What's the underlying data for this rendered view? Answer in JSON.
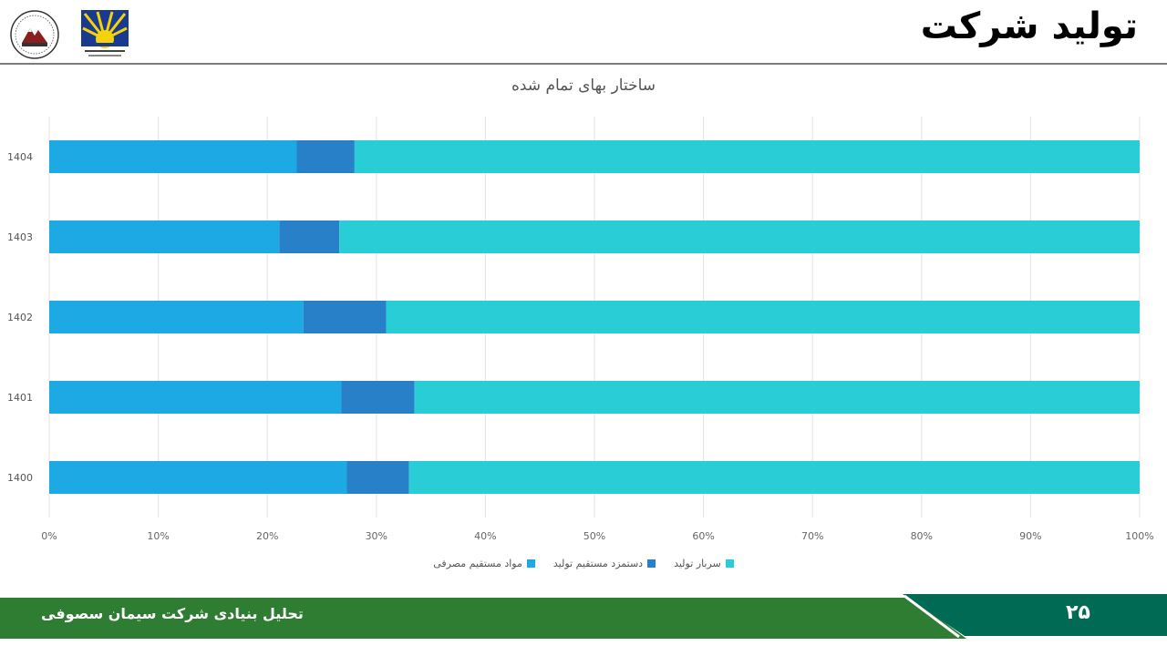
{
  "header": {
    "title": "تولید شرکت"
  },
  "chart_data": {
    "type": "bar",
    "orientation": "horizontal",
    "stacked": "percent",
    "title": "ساختار بهای تمام شده",
    "categories": [
      "1404",
      "1403",
      "1402",
      "1401",
      "1400"
    ],
    "series": [
      {
        "name": "مواد مستقیم مصرفی",
        "color": "#1da9e4",
        "values": [
          22.7,
          21.1,
          23.3,
          26.8,
          27.3
        ]
      },
      {
        "name": "دستمزد مستقیم تولید",
        "color": "#2880c8",
        "values": [
          5.3,
          5.5,
          7.6,
          6.7,
          5.7
        ]
      },
      {
        "name": "سربار تولید",
        "color": "#29cdd6",
        "values": [
          72.0,
          73.4,
          69.1,
          66.5,
          67.0
        ]
      }
    ],
    "xlim": [
      0,
      100
    ],
    "xticks": [
      "0%",
      "10%",
      "20%",
      "30%",
      "40%",
      "50%",
      "60%",
      "70%",
      "80%",
      "90%",
      "100%"
    ],
    "grid": true,
    "legend": "bottom"
  },
  "footer": {
    "text": "تحلیل بنیادی شرکت سیمان سصوفی",
    "page": "۲۵"
  },
  "colors": {
    "footer_green": "#2e7d32",
    "footer_teal": "#006a55"
  }
}
